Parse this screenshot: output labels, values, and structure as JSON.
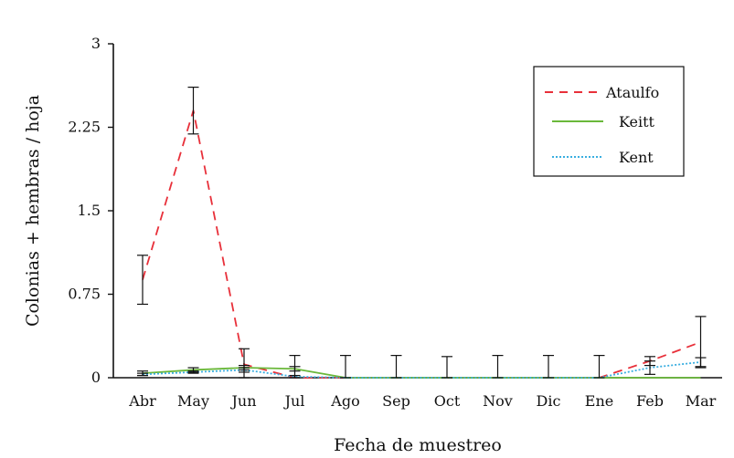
{
  "chart_data": {
    "type": "line",
    "xlabel": "Fecha de muestreo",
    "ylabel": "Colonias + hembras / hoja",
    "categories": [
      "Abr",
      "May",
      "Jun",
      "Jul",
      "Ago",
      "Sep",
      "Oct",
      "Nov",
      "Dic",
      "Ene",
      "Feb",
      "Mar"
    ],
    "ylim": [
      0,
      3
    ],
    "yticks": [
      "0",
      "0.75",
      "1.5",
      "2.25",
      "3"
    ],
    "grid": false,
    "legend_position": "top-right",
    "series": [
      {
        "name": "Ataulfo",
        "color": "#e8303a",
        "style": "dashed",
        "values": [
          0.88,
          2.4,
          0.12,
          0.0,
          0.0,
          0.0,
          0.0,
          0.0,
          0.0,
          0.0,
          0.15,
          0.32
        ],
        "error": [
          0.22,
          0.21,
          0.14,
          0.2,
          0.2,
          0.2,
          0.19,
          0.2,
          0.2,
          0.2,
          0.04,
          0.23
        ]
      },
      {
        "name": "Keitt",
        "color": "#6ab83a",
        "style": "solid",
        "values": [
          0.04,
          0.07,
          0.09,
          0.08,
          0.0,
          0.0,
          0.0,
          0.0,
          0.0,
          0.0,
          0.0,
          0.0
        ],
        "error": [
          0.02,
          0.02,
          0.02,
          0.02,
          0.0,
          0.0,
          0.0,
          0.0,
          0.0,
          0.0,
          0.0,
          0.0
        ]
      },
      {
        "name": "Kent",
        "color": "#3aaee0",
        "style": "dotted",
        "values": [
          0.03,
          0.05,
          0.07,
          0.01,
          0.0,
          0.0,
          0.0,
          0.0,
          0.0,
          0.0,
          0.09,
          0.14
        ],
        "error": [
          0.01,
          0.01,
          0.02,
          0.01,
          0.0,
          0.0,
          0.0,
          0.0,
          0.0,
          0.0,
          0.06,
          0.04
        ]
      }
    ]
  }
}
